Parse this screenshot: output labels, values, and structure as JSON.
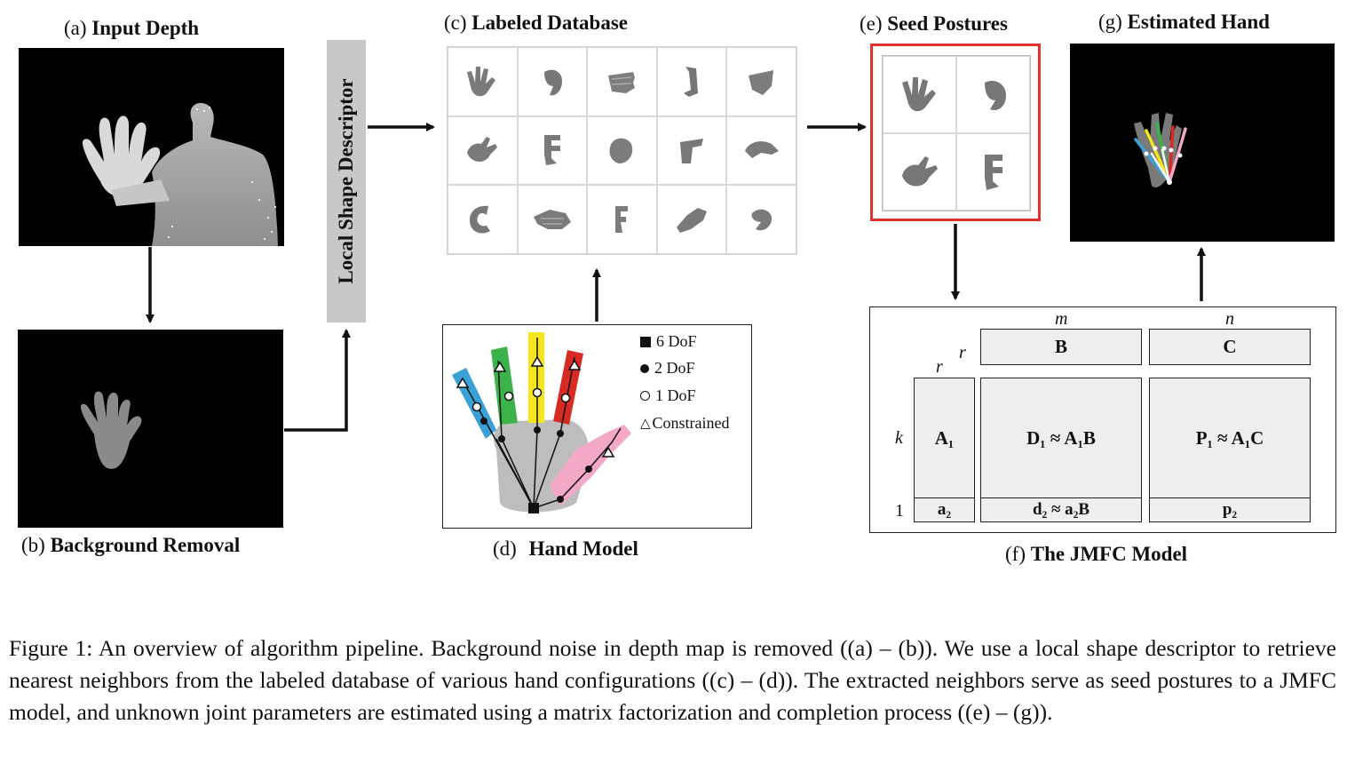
{
  "panels": {
    "a": {
      "prefix": "(a)",
      "title": "Input Depth"
    },
    "b": {
      "prefix": "(b)",
      "title": "Background Removal"
    },
    "c": {
      "prefix": "(c)",
      "title": "Labeled Database"
    },
    "d": {
      "prefix": "(d)",
      "title": "Hand Model"
    },
    "e": {
      "prefix": "(e)",
      "title": "Seed Postures"
    },
    "f": {
      "prefix": "(f)",
      "title": "The JMFC Model"
    },
    "g": {
      "prefix": "(g)",
      "title": "Estimated Hand"
    }
  },
  "descriptor_label": "Local Shape Descriptor",
  "legend": [
    {
      "symbol": "square",
      "label": "6 DoF"
    },
    {
      "symbol": "dot",
      "label": "2 DoF"
    },
    {
      "symbol": "circle",
      "label": "1 DoF"
    },
    {
      "symbol": "triangle",
      "label": "Constrained"
    }
  ],
  "finger_colors": {
    "thumb": "#f4a8c8",
    "index": "#d62a23",
    "middle": "#f5e51d",
    "ring": "#3cb34a",
    "pinky": "#3aa0d8",
    "palm": "#bdbdbd"
  },
  "accent_red": "#e0322b",
  "jmfc": {
    "dims": {
      "m": "m",
      "n": "n",
      "r_top": "r",
      "r_left": "r",
      "k": "k",
      "one": "1"
    },
    "B": "B",
    "C": "C",
    "A1": "A₁",
    "D1": "D₁ ≈ A₁B",
    "P1": "P₁ ≈ A₁C",
    "a2": "a₂",
    "d2": "d₂ ≈ a₂B",
    "p2": "p₂"
  },
  "caption": "Figure 1: An overview of algorithm pipeline. Background noise in depth map is removed ((a) – (b)). We use a local shape descriptor to retrieve nearest neighbors from the labeled database of various hand configurations ((c) – (d)). The extracted neighbors serve as seed postures to a JMFC model, and unknown joint parameters are estimated using a matrix factorization and completion process ((e) – (g))."
}
